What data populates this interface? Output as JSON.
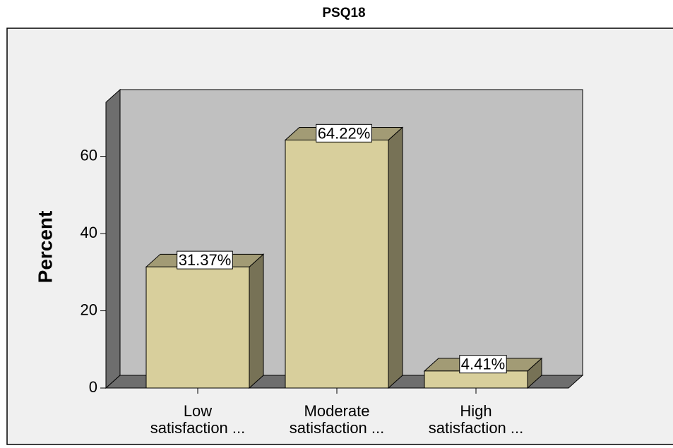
{
  "chart_data": {
    "type": "bar3d",
    "title": "PSQ18",
    "y_label": "Percent",
    "categories": [
      "Low satisfaction ...",
      "Moderate satisfaction ...",
      "High satisfaction ..."
    ],
    "values": [
      31.37,
      64.22,
      4.41
    ],
    "value_labels": [
      "31.37%",
      "64.22%",
      "4.41%"
    ],
    "color": "#d8cf9c",
    "ylim": [
      0,
      74
    ],
    "yticks": [
      0,
      20,
      40,
      60
    ]
  }
}
